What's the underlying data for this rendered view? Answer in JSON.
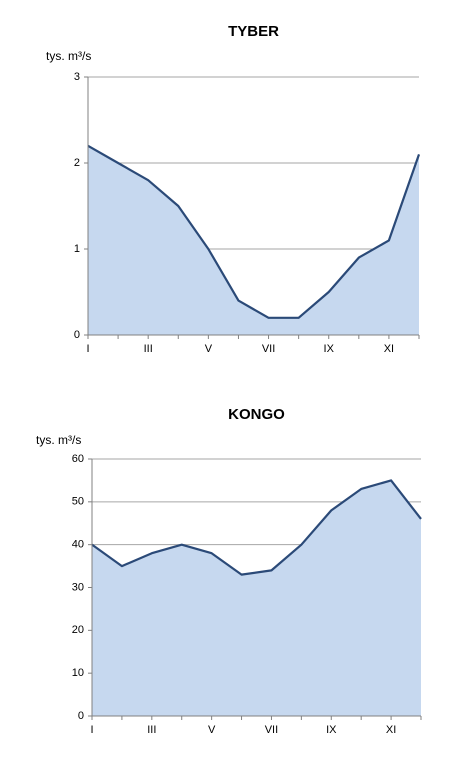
{
  "chart_data": [
    {
      "type": "area",
      "title": "TYBER",
      "y_label": "tys. m³/s",
      "categories": [
        "I",
        null,
        "III",
        null,
        "V",
        null,
        "VII",
        null,
        "IX",
        null,
        "XI",
        null
      ],
      "values": [
        2.2,
        2.0,
        1.8,
        1.5,
        1.0,
        0.4,
        0.2,
        0.2,
        0.5,
        0.9,
        1.1,
        2.1
      ],
      "ylim": [
        0,
        3
      ],
      "yticks": [
        0,
        1,
        2,
        3
      ],
      "grid": true,
      "color": "#2b4a78",
      "area_color": "#c6d8ef"
    },
    {
      "type": "area",
      "title": "KONGO",
      "y_label": "tys. m³/s",
      "categories": [
        "I",
        null,
        "III",
        null,
        "V",
        null,
        "VII",
        null,
        "IX",
        null,
        "XI",
        null
      ],
      "values": [
        40,
        35,
        38,
        40,
        38,
        33,
        34,
        40,
        48,
        53,
        55,
        46
      ],
      "ylim": [
        0,
        60
      ],
      "yticks": [
        0,
        10,
        20,
        30,
        40,
        50,
        60
      ],
      "grid": true,
      "color": "#2b4a78",
      "area_color": "#c6d8ef"
    }
  ]
}
